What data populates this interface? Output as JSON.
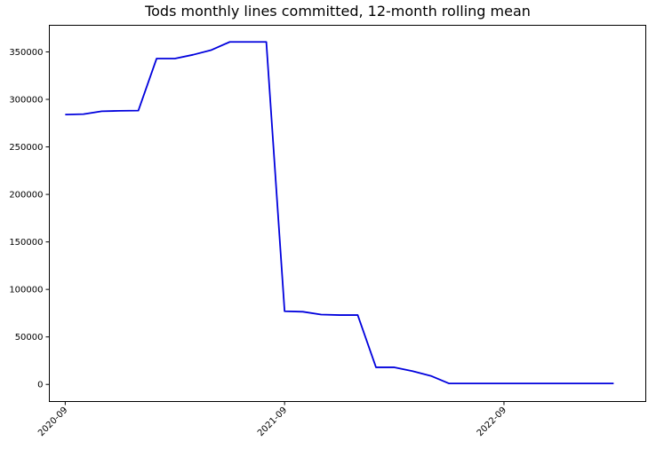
{
  "chart_data": {
    "type": "line",
    "title": "Tods monthly lines committed, 12-month rolling mean",
    "xlabel": "",
    "ylabel": "",
    "grid": false,
    "ylim": [
      -18000,
      378000
    ],
    "xlim": [
      "2020-08-05",
      "2023-04-24"
    ],
    "x_ticks": [
      "2020-09",
      "2021-09",
      "2022-09"
    ],
    "y_ticks": [
      0,
      50000,
      100000,
      150000,
      200000,
      250000,
      300000,
      350000
    ],
    "line_color": "#0000dd",
    "series": [
      {
        "x": [
          "2020-09",
          "2020-10",
          "2020-11",
          "2020-12",
          "2021-01",
          "2021-02",
          "2021-03",
          "2021-04",
          "2021-05",
          "2021-06",
          "2021-07",
          "2021-08",
          "2021-09",
          "2021-10",
          "2021-11",
          "2021-12",
          "2022-01",
          "2022-02",
          "2022-03",
          "2022-04",
          "2022-05",
          "2022-06",
          "2022-07",
          "2022-08",
          "2022-09",
          "2022-10",
          "2022-11",
          "2022-12",
          "2023-01",
          "2023-02",
          "2023-03"
        ],
        "y": [
          284000,
          284500,
          287500,
          288000,
          288200,
          343000,
          343000,
          347000,
          352000,
          360500,
          360500,
          360500,
          77000,
          76500,
          73500,
          73000,
          73000,
          18000,
          18000,
          14000,
          9000,
          1000,
          1000,
          1000,
          1000,
          1000,
          1000,
          1000,
          1000,
          1000,
          1000
        ]
      }
    ]
  }
}
